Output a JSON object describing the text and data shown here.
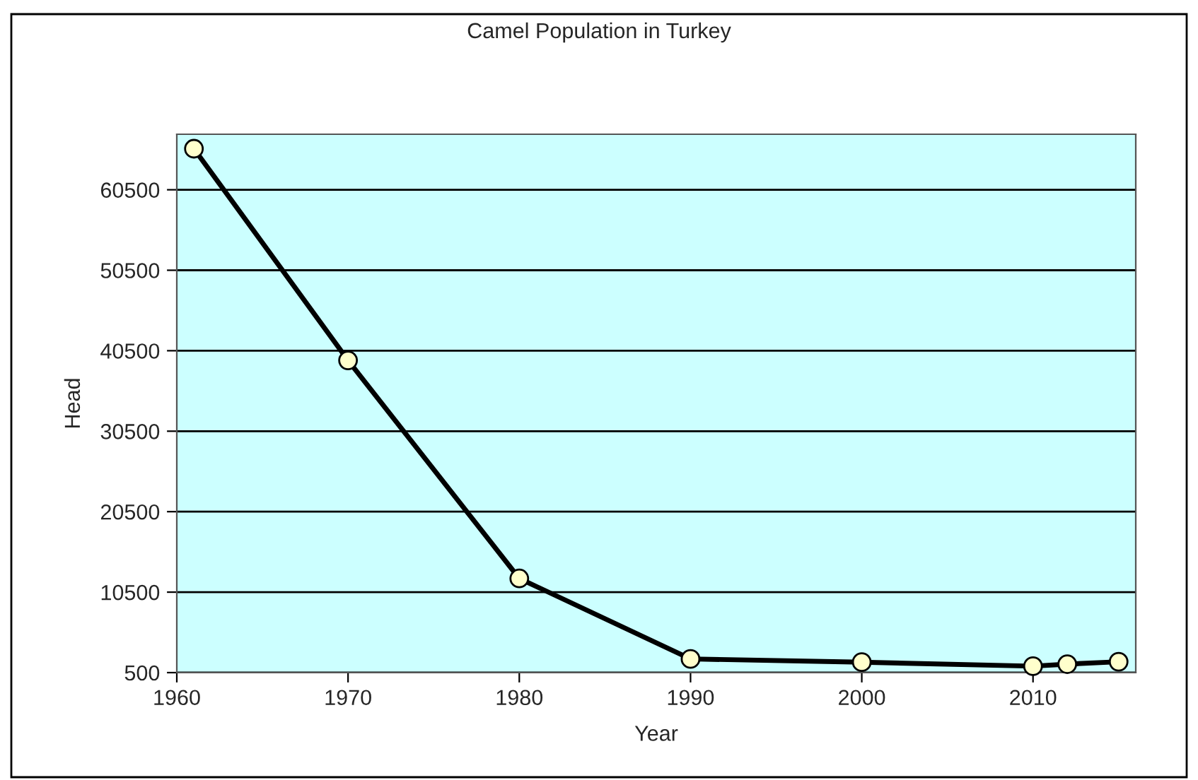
{
  "chart_data": {
    "type": "line",
    "title": "Camel Population in Turkey",
    "xlabel": "Year",
    "ylabel": "Head",
    "x": [
      1961,
      1970,
      1980,
      1990,
      2000,
      2010,
      2012,
      2015
    ],
    "series": [
      {
        "color": "#000000",
        "values": [
          65600,
          39300,
          12200,
          2200,
          1800,
          1300,
          1550,
          1850
        ]
      }
    ],
    "marker": "circle",
    "line_style": "solid",
    "grid": "y",
    "legend": false,
    "xlim": [
      1960,
      2016
    ],
    "xticks": [
      1960,
      1970,
      1980,
      1990,
      2000,
      2010
    ],
    "ylim": [
      500,
      67400
    ],
    "yticks": [
      500,
      10500,
      20500,
      30500,
      40500,
      50500,
      60500
    ]
  }
}
